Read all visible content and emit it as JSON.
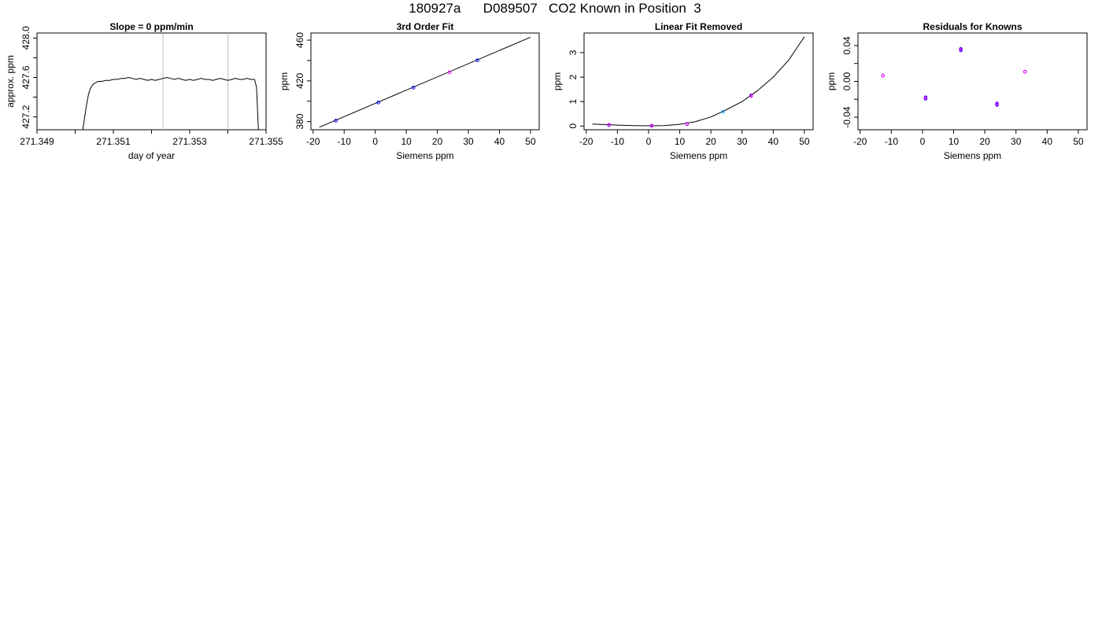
{
  "header": {
    "title": "180927a      D089507   CO2 Known in Position  3"
  },
  "chart_data": [
    {
      "type": "line",
      "title": "Slope =  0  ppm/min",
      "xlabel": "day of year",
      "ylabel": "approx. ppm",
      "xlim": [
        271.349,
        271.355
      ],
      "ylim": [
        427.07,
        428.05
      ],
      "xticks": [
        271.349,
        271.35,
        271.351,
        271.352,
        271.353,
        271.354,
        271.355
      ],
      "xtick_labels": [
        "271.349",
        "",
        "271.351",
        "",
        "271.353",
        "",
        "271.355"
      ],
      "yticks": [
        427.2,
        427.4,
        427.6,
        427.8,
        428.0
      ],
      "ytick_labels": [
        "427.2",
        "",
        "427.6",
        "",
        "428.0"
      ],
      "vlines": [
        271.3523,
        271.354
      ],
      "series": [
        {
          "color": "#000000",
          "x": [
            271.3502,
            271.35025,
            271.3503,
            271.35035,
            271.3504,
            271.35045,
            271.3505,
            271.35055,
            271.3506,
            271.3507,
            271.3508,
            271.3509,
            271.351,
            271.3511,
            271.3512,
            271.3513,
            271.3514,
            271.3515,
            271.3516,
            271.3517,
            271.3518,
            271.3519,
            271.352,
            271.3521,
            271.3522,
            271.3523,
            271.3524,
            271.3525,
            271.3526,
            271.3527,
            271.3528,
            271.3529,
            271.353,
            271.3531,
            271.3532,
            271.3533,
            271.3534,
            271.3535,
            271.3536,
            271.3537,
            271.3538,
            271.3539,
            271.354,
            271.3541,
            271.3542,
            271.3543,
            271.3544,
            271.3545,
            271.3546,
            271.3547,
            271.35475,
            271.3548
          ],
          "y": [
            427.07,
            427.2,
            427.33,
            427.43,
            427.49,
            427.52,
            427.54,
            427.55,
            427.56,
            427.56,
            427.57,
            427.57,
            427.58,
            427.58,
            427.59,
            427.59,
            427.6,
            427.59,
            427.58,
            427.59,
            427.58,
            427.57,
            427.58,
            427.57,
            427.58,
            427.59,
            427.6,
            427.59,
            427.58,
            427.59,
            427.58,
            427.57,
            427.58,
            427.57,
            427.58,
            427.59,
            427.58,
            427.58,
            427.57,
            427.58,
            427.59,
            427.58,
            427.57,
            427.58,
            427.59,
            427.58,
            427.58,
            427.59,
            427.58,
            427.58,
            427.5,
            427.07
          ]
        }
      ]
    },
    {
      "type": "scatter",
      "title": "3rd Order Fit",
      "xlabel": "Siemens ppm",
      "ylabel": "ppm",
      "xlim": [
        -20.7,
        52.8
      ],
      "ylim": [
        372,
        467
      ],
      "xticks": [
        -20,
        -10,
        0,
        10,
        20,
        30,
        40,
        50
      ],
      "xtick_labels": [
        "-20",
        "-10",
        "0",
        "10",
        "20",
        "30",
        "40",
        "50"
      ],
      "yticks": [
        380,
        400,
        420,
        440,
        460
      ],
      "ytick_labels": [
        "380",
        "",
        "420",
        "",
        "460"
      ],
      "line": {
        "color": "#000000",
        "x": [
          -18,
          50
        ],
        "y": [
          374.5,
          462.9
        ]
      },
      "series": [
        {
          "color": "#0000ff",
          "x": [
            -12.7,
            1.0,
            12.3,
            32.9
          ],
          "y": [
            380.9,
            398.7,
            413.4,
            440.2
          ]
        },
        {
          "color": "#ff00ff",
          "x": [
            23.9
          ],
          "y": [
            428.3
          ]
        }
      ]
    },
    {
      "type": "scatter",
      "title": "Linear Fit Removed",
      "xlabel": "Siemens ppm",
      "ylabel": "ppm",
      "xlim": [
        -20.7,
        52.8
      ],
      "ylim": [
        -0.15,
        3.8
      ],
      "xticks": [
        -20,
        -10,
        0,
        10,
        20,
        30,
        40,
        50
      ],
      "xtick_labels": [
        "-20",
        "-10",
        "0",
        "10",
        "20",
        "30",
        "40",
        "50"
      ],
      "yticks": [
        0,
        1,
        2,
        3
      ],
      "ytick_labels": [
        "0",
        "1",
        "2",
        "3"
      ],
      "line": {
        "color": "#000000",
        "x": [
          -18,
          -15,
          -10,
          -5,
          0,
          5,
          10,
          15,
          20,
          25,
          30,
          35,
          40,
          45,
          50
        ],
        "y": [
          0.08,
          0.065,
          0.04,
          0.02,
          0.01,
          0.02,
          0.07,
          0.18,
          0.37,
          0.67,
          1.0,
          1.45,
          2.0,
          2.7,
          3.65
        ]
      },
      "series": [
        {
          "color": "#0000ff",
          "x": [
            -12.7,
            1.0,
            12.3,
            32.9
          ],
          "y": [
            0.04,
            0.01,
            0.08,
            1.25
          ]
        },
        {
          "color": "#00aaff",
          "x": [
            23.9
          ],
          "y": [
            0.58
          ]
        },
        {
          "color": "#ff00ff",
          "x": [
            -12.7,
            1.0,
            12.3,
            32.9
          ],
          "y": [
            0.05,
            0.02,
            0.09,
            1.23
          ]
        }
      ]
    },
    {
      "type": "scatter",
      "title": "Residuals for Knowns",
      "xlabel": "Siemens ppm",
      "ylabel": "ppm",
      "xlim": [
        -20.7,
        52.8
      ],
      "ylim": [
        -0.054,
        0.054
      ],
      "xticks": [
        -20,
        -10,
        0,
        10,
        20,
        30,
        40,
        50
      ],
      "xtick_labels": [
        "-20",
        "-10",
        "0",
        "10",
        "20",
        "30",
        "40",
        "50"
      ],
      "yticks": [
        -0.04,
        -0.02,
        0.0,
        0.02,
        0.04
      ],
      "ytick_labels": [
        "-0.04",
        "",
        "0.00",
        "",
        "0.04"
      ],
      "series": [
        {
          "color": "#0000ff",
          "x": [
            -12.7,
            1.0,
            1.0,
            12.3,
            12.3,
            23.9,
            23.9,
            32.9
          ],
          "y": [
            0.0065,
            -0.0178,
            -0.0193,
            0.0347,
            0.0362,
            -0.0247,
            -0.0262,
            0.0108
          ]
        },
        {
          "color": "#ff00ff",
          "x": [
            -12.7,
            1.0,
            12.3,
            23.9,
            32.9
          ],
          "y": [
            0.0065,
            -0.0185,
            0.0355,
            -0.0255,
            0.0108
          ]
        }
      ]
    }
  ]
}
